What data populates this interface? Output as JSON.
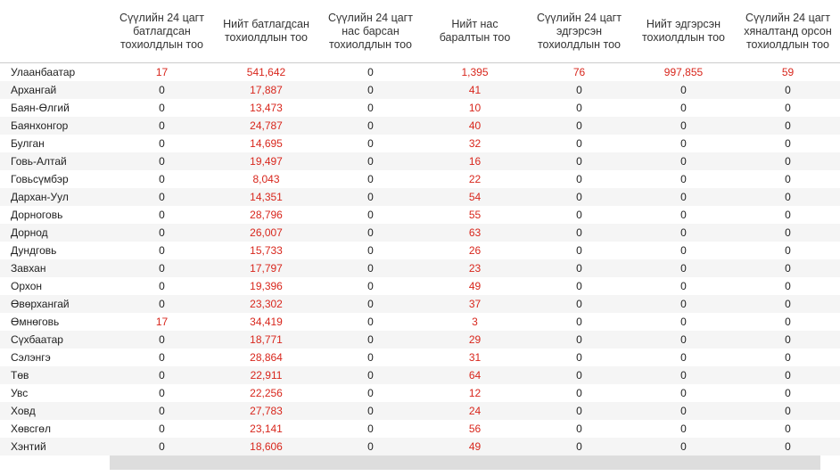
{
  "table": {
    "headers": [
      "Сүүлийн 24 цагт батлагдсан тохиолдлын тоо",
      "Нийт батлагдсан тохиолдлын тоо",
      "Сүүлийн 24 цагт нас барсан тохиолдлын тоо",
      "Нийт нас баралтын тоо",
      "Сүүлийн 24 цагт эдгэрсэн тохиолдлын тоо",
      "Нийт эдгэрсэн тохиолдлын тоо",
      "Сүүлийн 24 цагт хяналтанд орсон тохиолдлын тоо"
    ],
    "rows": [
      [
        "Улаанбаатар",
        "17",
        "541,642",
        "0",
        "1,395",
        "76",
        "997,855",
        "59"
      ],
      [
        "Архангай",
        "0",
        "17,887",
        "0",
        "41",
        "0",
        "0",
        "0"
      ],
      [
        "Баян-Өлгий",
        "0",
        "13,473",
        "0",
        "10",
        "0",
        "0",
        "0"
      ],
      [
        "Баянхонгор",
        "0",
        "24,787",
        "0",
        "40",
        "0",
        "0",
        "0"
      ],
      [
        "Булган",
        "0",
        "14,695",
        "0",
        "32",
        "0",
        "0",
        "0"
      ],
      [
        "Говь-Алтай",
        "0",
        "19,497",
        "0",
        "16",
        "0",
        "0",
        "0"
      ],
      [
        "Говьсүмбэр",
        "0",
        "8,043",
        "0",
        "22",
        "0",
        "0",
        "0"
      ],
      [
        "Дархан-Уул",
        "0",
        "14,351",
        "0",
        "54",
        "0",
        "0",
        "0"
      ],
      [
        "Дорноговь",
        "0",
        "28,796",
        "0",
        "55",
        "0",
        "0",
        "0"
      ],
      [
        "Дорнод",
        "0",
        "26,007",
        "0",
        "63",
        "0",
        "0",
        "0"
      ],
      [
        "Дундговь",
        "0",
        "15,733",
        "0",
        "26",
        "0",
        "0",
        "0"
      ],
      [
        "Завхан",
        "0",
        "17,797",
        "0",
        "23",
        "0",
        "0",
        "0"
      ],
      [
        "Орхон",
        "0",
        "19,396",
        "0",
        "49",
        "0",
        "0",
        "0"
      ],
      [
        "Өвөрхангай",
        "0",
        "23,302",
        "0",
        "37",
        "0",
        "0",
        "0"
      ],
      [
        "Өмнөговь",
        "17",
        "34,419",
        "0",
        "3",
        "0",
        "0",
        "0"
      ],
      [
        "Сүхбаатар",
        "0",
        "18,771",
        "0",
        "29",
        "0",
        "0",
        "0"
      ],
      [
        "Сэлэнгэ",
        "0",
        "28,864",
        "0",
        "31",
        "0",
        "0",
        "0"
      ],
      [
        "Төв",
        "0",
        "22,911",
        "0",
        "64",
        "0",
        "0",
        "0"
      ],
      [
        "Увс",
        "0",
        "22,256",
        "0",
        "12",
        "0",
        "0",
        "0"
      ],
      [
        "Ховд",
        "0",
        "27,783",
        "0",
        "24",
        "0",
        "0",
        "0"
      ],
      [
        "Хөвсгөл",
        "0",
        "23,141",
        "0",
        "56",
        "0",
        "0",
        "0"
      ],
      [
        "Хэнтий",
        "0",
        "18,606",
        "0",
        "49",
        "0",
        "0",
        "0"
      ]
    ]
  }
}
